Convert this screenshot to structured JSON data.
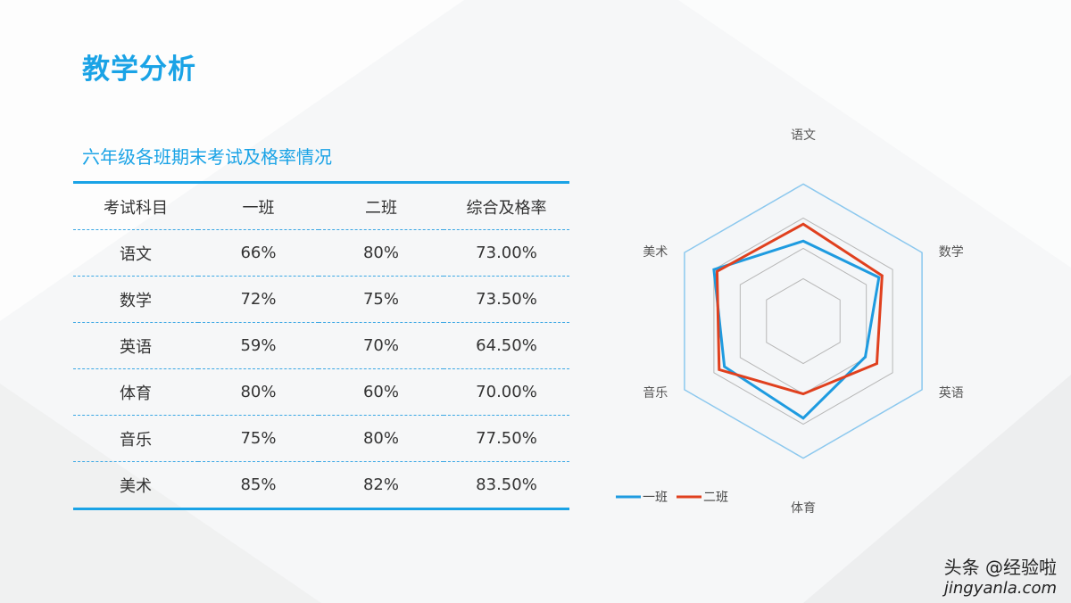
{
  "page": {
    "title": "教学分析"
  },
  "table": {
    "title": "六年级各班期末考试及格率情况",
    "headers": [
      "考试科目",
      "一班",
      "二班",
      "综合及格率"
    ],
    "rows": [
      [
        "语文",
        "66%",
        "80%",
        "73.00%"
      ],
      [
        "数学",
        "72%",
        "75%",
        "73.50%"
      ],
      [
        "英语",
        "59%",
        "70%",
        "64.50%"
      ],
      [
        "体育",
        "80%",
        "60%",
        "70.00%"
      ],
      [
        "音乐",
        "75%",
        "80%",
        "77.50%"
      ],
      [
        "美术",
        "85%",
        "82%",
        "83.50%"
      ]
    ]
  },
  "chart_data": {
    "type": "radar",
    "categories": [
      "语文",
      "数学",
      "英语",
      "体育",
      "音乐",
      "美术"
    ],
    "series": [
      {
        "name": "一班",
        "values": [
          66,
          72,
          59,
          80,
          75,
          85
        ],
        "color": "#1e9be0"
      },
      {
        "name": "二班",
        "values": [
          80,
          75,
          70,
          60,
          80,
          82
        ],
        "color": "#e0401e"
      }
    ],
    "range": [
      0,
      100
    ],
    "legend_position": "bottom-left",
    "grid": true
  },
  "watermark": {
    "text": "头条 @经验啦",
    "url": "jingyanla.com"
  }
}
